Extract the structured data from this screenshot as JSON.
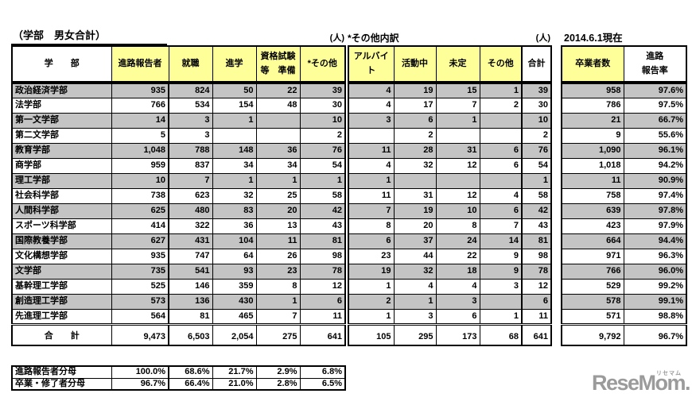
{
  "left_table": {
    "title": "（学部　男女合計）",
    "unit": "(人)",
    "headers": [
      "学　　部",
      "進路報告者",
      "就職",
      "進学",
      "資格試験\n等　準備",
      "*その他"
    ],
    "rows": [
      [
        "政治経済学部",
        "935",
        "824",
        "50",
        "22",
        "39"
      ],
      [
        "法学部",
        "766",
        "534",
        "154",
        "48",
        "30"
      ],
      [
        "第一文学部",
        "14",
        "3",
        "1",
        "",
        "10"
      ],
      [
        "第二文学部",
        "5",
        "3",
        "",
        "",
        "2"
      ],
      [
        "教育学部",
        "1,048",
        "788",
        "148",
        "36",
        "76"
      ],
      [
        "商学部",
        "959",
        "837",
        "34",
        "34",
        "54"
      ],
      [
        "理工学部",
        "10",
        "7",
        "1",
        "1",
        "1"
      ],
      [
        "社会科学部",
        "738",
        "623",
        "32",
        "25",
        "58"
      ],
      [
        "人間科学部",
        "625",
        "480",
        "83",
        "20",
        "42"
      ],
      [
        "スポーツ科学部",
        "414",
        "322",
        "36",
        "13",
        "43"
      ],
      [
        "国際教養学部",
        "627",
        "431",
        "104",
        "11",
        "81"
      ],
      [
        "文化構想学部",
        "935",
        "747",
        "64",
        "26",
        "98"
      ],
      [
        "文学部",
        "735",
        "541",
        "93",
        "23",
        "78"
      ],
      [
        "基幹理工学部",
        "525",
        "146",
        "359",
        "8",
        "12"
      ],
      [
        "創造理工学部",
        "573",
        "136",
        "430",
        "1",
        "6"
      ],
      [
        "先進理工学部",
        "564",
        "81",
        "465",
        "7",
        "11"
      ]
    ],
    "total_row": [
      "合　　計",
      "9,473",
      "6,503",
      "2,054",
      "275",
      "641"
    ],
    "percent_rows": [
      [
        "進路報告者分母",
        "100.0%",
        "68.6%",
        "21.7%",
        "2.9%",
        "6.8%"
      ],
      [
        "卒業・修了者分母",
        "96.7%",
        "66.4%",
        "21.0%",
        "2.8%",
        "6.5%"
      ]
    ]
  },
  "other_table": {
    "title": "*その他内訳",
    "unit": "(人)",
    "headers": [
      "アルバイト",
      "活動中",
      "未定",
      "その他",
      "合計"
    ],
    "rows": [
      [
        "4",
        "19",
        "15",
        "1",
        "39"
      ],
      [
        "4",
        "17",
        "7",
        "2",
        "30"
      ],
      [
        "3",
        "6",
        "1",
        "",
        "10"
      ],
      [
        "",
        "2",
        "",
        "",
        "2"
      ],
      [
        "11",
        "28",
        "31",
        "6",
        "76"
      ],
      [
        "4",
        "32",
        "12",
        "6",
        "54"
      ],
      [
        "1",
        "",
        "",
        "",
        "1"
      ],
      [
        "11",
        "31",
        "12",
        "4",
        "58"
      ],
      [
        "7",
        "19",
        "10",
        "6",
        "42"
      ],
      [
        "8",
        "20",
        "8",
        "7",
        "43"
      ],
      [
        "6",
        "37",
        "24",
        "14",
        "81"
      ],
      [
        "23",
        "44",
        "22",
        "9",
        "98"
      ],
      [
        "19",
        "32",
        "18",
        "9",
        "78"
      ],
      [
        "1",
        "4",
        "4",
        "3",
        "12"
      ],
      [
        "2",
        "1",
        "3",
        "",
        "6"
      ],
      [
        "1",
        "3",
        "6",
        "1",
        "11"
      ]
    ],
    "total_row": [
      "105",
      "295",
      "173",
      "68",
      "641"
    ]
  },
  "right_table": {
    "date_label": "2014.6.1現在",
    "headers": [
      "卒業者数",
      "進路\n報告率"
    ],
    "rows": [
      [
        "958",
        "97.6%"
      ],
      [
        "786",
        "97.5%"
      ],
      [
        "21",
        "66.7%"
      ],
      [
        "9",
        "55.6%"
      ],
      [
        "1,090",
        "96.1%"
      ],
      [
        "1,018",
        "94.2%"
      ],
      [
        "11",
        "90.9%"
      ],
      [
        "758",
        "97.4%"
      ],
      [
        "639",
        "97.8%"
      ],
      [
        "423",
        "97.9%"
      ],
      [
        "664",
        "94.4%"
      ],
      [
        "971",
        "96.3%"
      ],
      [
        "766",
        "96.0%"
      ],
      [
        "529",
        "99.2%"
      ],
      [
        "578",
        "99.1%"
      ],
      [
        "571",
        "98.8%"
      ]
    ],
    "total_row": [
      "9,792",
      "96.7%"
    ]
  },
  "logo": {
    "text": "ReseMom.",
    "ruby": "リセマム"
  },
  "colors": {
    "header_yellow": "#ffff99",
    "stripe_gray": "#c4c4c4",
    "logo_gray": "#9b9b9b"
  }
}
